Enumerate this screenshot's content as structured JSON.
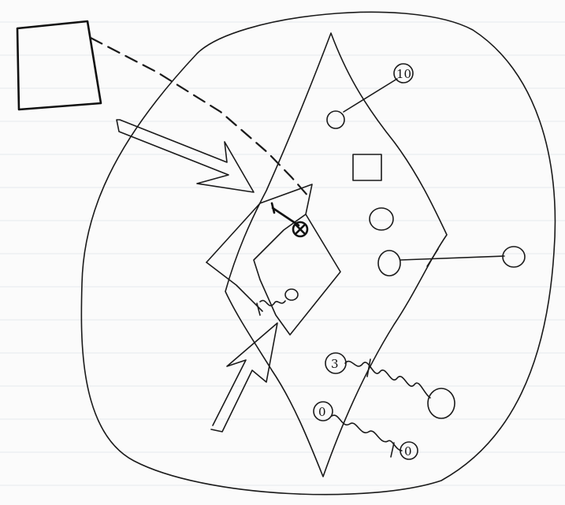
{
  "diagram": {
    "markers": [
      {
        "id": "marker-10",
        "text": "10"
      },
      {
        "id": "marker-3",
        "text": "3"
      },
      {
        "id": "marker-0-left",
        "text": "0"
      },
      {
        "id": "marker-0-right",
        "text": "0"
      }
    ],
    "ink_color": "#1a1a1a",
    "paper_color": "#fbfbfb",
    "rule_color": "#e4e8ee"
  }
}
